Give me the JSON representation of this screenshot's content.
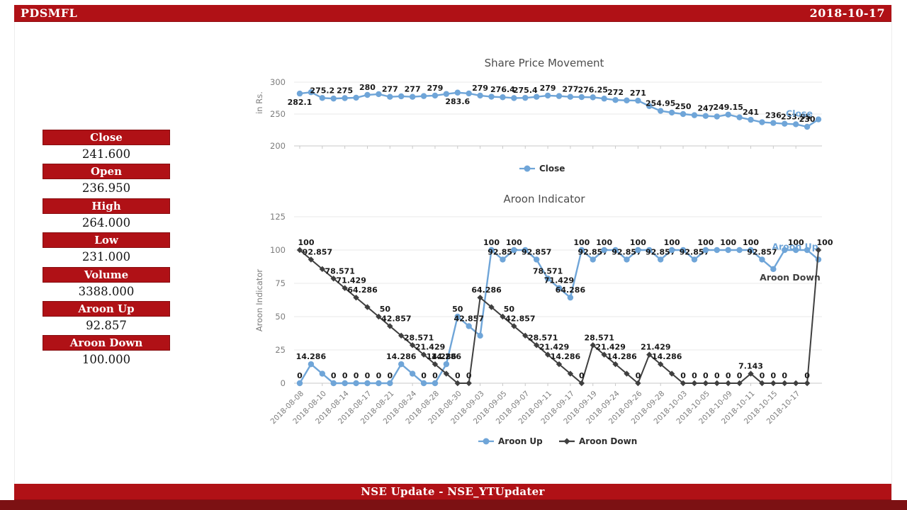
{
  "header": {
    "title": "PDSMFL",
    "date": "2018-10-17"
  },
  "footer": {
    "text": "NSE Update - NSE_YTUpdater"
  },
  "sidebar": {
    "stats": [
      {
        "label": "Close",
        "value": "241.600"
      },
      {
        "label": "Open",
        "value": "236.950"
      },
      {
        "label": "High",
        "value": "264.000"
      },
      {
        "label": "Low",
        "value": "231.000"
      },
      {
        "label": "Volume",
        "value": "3388.000"
      },
      {
        "label": "Aroon Up",
        "value": "92.857"
      },
      {
        "label": "Aroon Down",
        "value": "100.000"
      }
    ]
  },
  "colors": {
    "accent_red": "#b01116",
    "footer_strip": "#7c1113",
    "close_series": "#6fa5d8",
    "aroon_up": "#6fa5d8",
    "aroon_down": "#3f3f3f"
  },
  "chart_data": [
    {
      "type": "line",
      "title": "Share Price Movement",
      "ylabel": "in Rs.",
      "ylim": [
        200,
        300
      ],
      "yticks": [
        200,
        250,
        300
      ],
      "x_tick_every": 2,
      "x_tick_labels": [
        "2018-08-08",
        "2018-08-10",
        "2018-08-14",
        "2018-08-17",
        "2018-08-21",
        "2018-08-24",
        "2018-08-28",
        "2018-08-30",
        "2018-09-03",
        "2018-09-05",
        "2018-09-07",
        "2018-09-11",
        "2018-09-17",
        "2018-09-19",
        "2018-09-24",
        "2018-09-26",
        "2018-09-28",
        "2018-10-03",
        "2018-10-05",
        "2018-10-09",
        "2018-10-11",
        "2018-10-15",
        "2018-10-17"
      ],
      "legend_position": "bottom",
      "series": [
        {
          "name": "Close",
          "color": "#6fa5d8",
          "marker": "circle",
          "values": [
            282.1,
            284.2,
            275.2,
            274.3,
            275,
            275.6,
            280,
            281.2,
            277,
            277.8,
            277,
            278.2,
            279,
            281.5,
            283.6,
            282.3,
            279,
            277.2,
            276.4,
            275.1,
            275.4,
            277,
            279,
            278.2,
            277,
            276.6,
            276.25,
            274.2,
            272,
            271.4,
            271,
            262.5,
            254.95,
            252.3,
            250,
            248.2,
            247,
            246.1,
            249.15,
            244.8,
            241,
            237.2,
            236,
            234.8,
            233.95,
            230,
            241.6
          ],
          "labels": [
            "282.1",
            null,
            "275.2",
            null,
            "275",
            null,
            "280",
            null,
            "277",
            null,
            "277",
            null,
            "279",
            null,
            "283.6",
            null,
            "279",
            null,
            "276.4",
            null,
            "275.4",
            null,
            "279",
            null,
            "277",
            null,
            "276.25",
            null,
            "272",
            null,
            "271",
            null,
            "254.95",
            null,
            "250",
            null,
            "247",
            null,
            "249.15",
            null,
            "241",
            null,
            "236",
            null,
            "233.95",
            "230",
            null
          ],
          "label_below": [
            0,
            14
          ],
          "show_name_at_end": true
        }
      ]
    },
    {
      "type": "line",
      "title": "Aroon Indicator",
      "ylabel": "Aroon Indicator",
      "ylim": [
        0,
        125
      ],
      "yticks": [
        0,
        25,
        50,
        75,
        100,
        125
      ],
      "x_tick_every": 2,
      "x_tick_labels": [
        "2018-08-08",
        "2018-08-10",
        "2018-08-14",
        "2018-08-17",
        "2018-08-21",
        "2018-08-24",
        "2018-08-28",
        "2018-08-30",
        "2018-09-03",
        "2018-09-05",
        "2018-09-07",
        "2018-09-11",
        "2018-09-17",
        "2018-09-19",
        "2018-09-24",
        "2018-09-26",
        "2018-09-28",
        "2018-10-03",
        "2018-10-05",
        "2018-10-09",
        "2018-10-11",
        "2018-10-15",
        "2018-10-17"
      ],
      "legend_position": "bottom",
      "series": [
        {
          "name": "Aroon Up",
          "color": "#6fa5d8",
          "marker": "circle",
          "values": [
            0,
            14.286,
            7.143,
            0,
            0,
            0,
            0,
            0,
            0,
            14.286,
            7.143,
            0,
            0,
            14.286,
            50,
            42.857,
            35.714,
            100,
            92.857,
            100,
            100,
            92.857,
            78.571,
            71.429,
            64.286,
            100,
            92.857,
            100,
            100,
            92.857,
            100,
            100,
            92.857,
            100,
            100,
            92.857,
            100,
            100,
            100,
            100,
            100,
            92.857,
            85.714,
            100,
            100,
            100,
            92.857
          ],
          "labels": [
            "0",
            "14.286",
            null,
            "0",
            "0",
            "0",
            "0",
            "0",
            "0",
            "14.286",
            null,
            "0",
            "0",
            "14.286",
            "50",
            "42.857",
            null,
            "100",
            "92.857",
            "100",
            null,
            "92.857",
            "78.571",
            "71.429",
            "64.286",
            "100",
            "92.857",
            "100",
            null,
            "92.857",
            "100",
            null,
            "92.857",
            "100",
            null,
            "92.857",
            "100",
            null,
            "100",
            null,
            "100",
            "92.857",
            null,
            null,
            "100",
            null,
            null
          ],
          "show_name_at_end": true
        },
        {
          "name": "Aroon Down",
          "color": "#3f3f3f",
          "marker": "diamond",
          "values": [
            100,
            92.857,
            85.714,
            78.571,
            71.429,
            64.286,
            57.143,
            50,
            42.857,
            35.714,
            28.571,
            21.429,
            14.286,
            7.143,
            0,
            0,
            64.286,
            57.143,
            50,
            42.857,
            35.714,
            28.571,
            21.429,
            14.286,
            7.143,
            0,
            28.571,
            21.429,
            14.286,
            7.143,
            0,
            21.429,
            14.286,
            7.143,
            0,
            0,
            0,
            0,
            0,
            0,
            7.143,
            0,
            0,
            0,
            0,
            0,
            100
          ],
          "labels": [
            "100",
            "92.857",
            null,
            "78.571",
            "71.429",
            "64.286",
            null,
            "50",
            "42.857",
            null,
            "28.571",
            "21.429",
            "14.286",
            null,
            "0",
            "0",
            "64.286",
            null,
            "50",
            "42.857",
            null,
            "28.571",
            "21.429",
            "14.286",
            null,
            "0",
            "28.571",
            "21.429",
            "14.286",
            null,
            "0",
            "21.429",
            "14.286",
            null,
            "0",
            "0",
            "0",
            "0",
            "0",
            "0",
            "7.143",
            "0",
            "0",
            "0",
            null,
            "0",
            "100"
          ],
          "show_name_at_end": true
        }
      ]
    }
  ]
}
